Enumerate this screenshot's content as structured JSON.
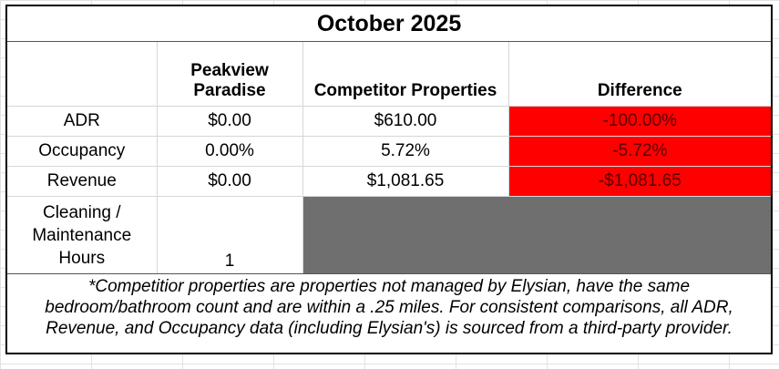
{
  "title": "October 2025",
  "columns": {
    "peakview": "Peakview Paradise",
    "competitor": "Competitor Properties",
    "difference": "Difference"
  },
  "rows": [
    {
      "label": "ADR",
      "peakview": "$0.00",
      "competitor": "$610.00",
      "difference": "-100.00%"
    },
    {
      "label": "Occupancy",
      "peakview": "0.00%",
      "competitor": "5.72%",
      "difference": "-5.72%"
    },
    {
      "label": "Revenue",
      "peakview": "$0.00",
      "competitor": "$1,081.65",
      "difference": "-$1,081.65"
    }
  ],
  "cleaning": {
    "label": "Cleaning / Maintenance Hours",
    "value": "1"
  },
  "footnote": "*Competitior properties are properties not managed by Elysian, have the same bedroom/bathroom count and are within a .25 miles. For consistent comparisons, all ADR, Revenue, and Occupancy data (including Elysian's) is sourced from a third-party provider.",
  "colors": {
    "difference_fill": "#ff0000",
    "difference_text": "#5a0000",
    "blocked_cell": "#6f6f6f"
  }
}
